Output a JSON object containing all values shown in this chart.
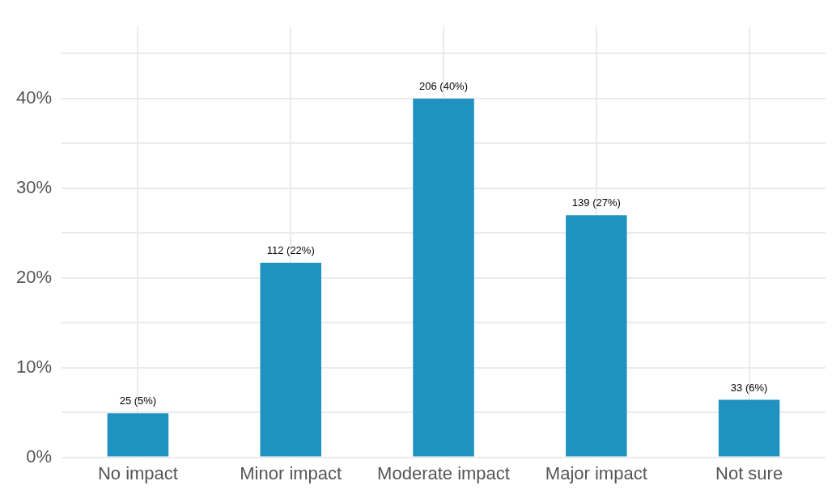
{
  "chart_data": {
    "type": "bar",
    "categories": [
      "No impact",
      "Minor impact",
      "Moderate impact",
      "Major impact",
      "Not sure"
    ],
    "values": [
      4.9,
      21.7,
      40,
      27,
      6.4
    ],
    "value_labels": [
      "25 (5%)",
      "112 (22%)",
      "206 (40%)",
      "139 (27%)",
      "33 (6%)"
    ],
    "color": "#1f92c1",
    "ylim": [
      0,
      48
    ],
    "yticks": [
      {
        "value": 0,
        "label": "0%"
      },
      {
        "value": 5,
        "label": null
      },
      {
        "value": 10,
        "label": "10%"
      },
      {
        "value": 15,
        "label": null
      },
      {
        "value": 20,
        "label": "20%"
      },
      {
        "value": 25,
        "label": null
      },
      {
        "value": 30,
        "label": "30%"
      },
      {
        "value": 35,
        "label": null
      },
      {
        "value": 40,
        "label": "40%"
      },
      {
        "value": 45,
        "label": null
      }
    ],
    "grid": true,
    "legend": false
  }
}
